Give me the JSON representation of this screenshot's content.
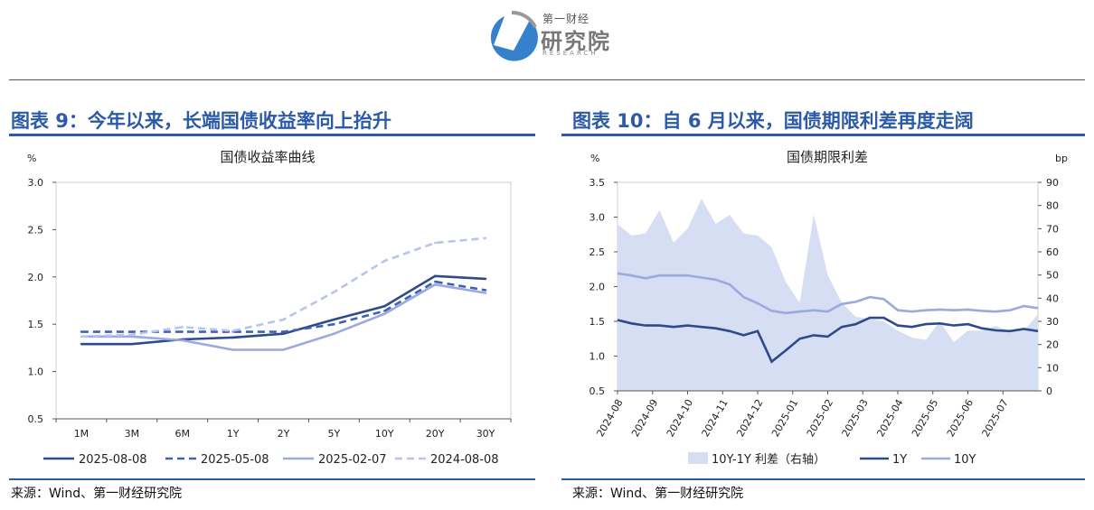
{
  "logo": {
    "name_small": "第一财经",
    "name_main": "研究院",
    "name_sub": "RESEARCH"
  },
  "figure_left": {
    "title": "图表 9：今年以来，长端国债收益率向上抬升",
    "source": "来源：Wind、第一财经研究院"
  },
  "figure_right": {
    "title": "图表 10：自 6 月以来，国债期限利差再度走阔",
    "source": "来源：Wind、第一财经研究院"
  },
  "colors": {
    "accent": "#2b5aa8",
    "dark_blue": "#2e4a8c",
    "mid_blue": "#3f62b0",
    "light_blue": "#9aaadd",
    "pale_blue": "#b8c4ec",
    "area_fill": "#d5def3"
  },
  "chart_data": [
    {
      "type": "line",
      "title": "国债收益率曲线",
      "ylabel": "%",
      "categories": [
        "1M",
        "3M",
        "6M",
        "1Y",
        "2Y",
        "5Y",
        "10Y",
        "20Y",
        "30Y"
      ],
      "ylim": [
        0.5,
        3.0
      ],
      "yticks": [
        "0.5",
        "1.0",
        "1.5",
        "2.0",
        "2.5",
        "3.0"
      ],
      "legend_position": "bottom",
      "series": [
        {
          "name": "2025-08-08",
          "style": "solid",
          "color": "#2e4a8c",
          "values": [
            1.29,
            1.29,
            1.34,
            1.36,
            1.4,
            1.55,
            1.69,
            2.01,
            1.98
          ]
        },
        {
          "name": "2025-05-08",
          "style": "dashed",
          "color": "#3f62b0",
          "values": [
            1.42,
            1.42,
            1.42,
            1.42,
            1.42,
            1.5,
            1.64,
            1.95,
            1.86
          ]
        },
        {
          "name": "2025-02-07",
          "style": "solid",
          "color": "#9aaadd",
          "values": [
            1.37,
            1.37,
            1.33,
            1.23,
            1.23,
            1.4,
            1.61,
            1.92,
            1.83
          ]
        },
        {
          "name": "2024-08-08",
          "style": "dashed",
          "color": "#b8c4ec",
          "values": [
            1.37,
            1.39,
            1.47,
            1.43,
            1.55,
            1.84,
            2.17,
            2.36,
            2.41
          ]
        }
      ]
    },
    {
      "type": "line",
      "title": "国债期限利差",
      "ylabel": "%",
      "ylabel_right": "bp",
      "ylim": [
        0.5,
        3.5
      ],
      "ylim_right": [
        0,
        90
      ],
      "yticks": [
        "0.5",
        "1.0",
        "1.5",
        "2.0",
        "2.5",
        "3.0",
        "3.5"
      ],
      "yticks_right": [
        "0",
        "10",
        "20",
        "30",
        "40",
        "50",
        "60",
        "70",
        "80",
        "90"
      ],
      "x_ticks": [
        "2024-08",
        "2024-09",
        "2024-10",
        "2024-11",
        "2024-12",
        "2025-01",
        "2025-02",
        "2025-03",
        "2025-04",
        "2025-05",
        "2025-06",
        "2025-07"
      ],
      "legend_position": "bottom",
      "series": [
        {
          "name": "10Y-1Y 利差（右轴）",
          "type": "area",
          "axis": "right",
          "color": "#d5def3",
          "values": [
            72,
            67,
            68,
            78,
            64,
            70,
            83,
            72,
            76,
            68,
            67,
            62,
            47,
            38,
            76,
            50,
            38,
            32,
            31,
            30,
            26,
            23,
            22,
            30,
            21,
            26,
            26,
            28,
            26,
            26,
            33
          ]
        },
        {
          "name": "1Y",
          "type": "line",
          "axis": "left",
          "color": "#2e4a8c",
          "values": [
            1.52,
            1.47,
            1.44,
            1.44,
            1.42,
            1.44,
            1.42,
            1.4,
            1.36,
            1.3,
            1.36,
            0.92,
            1.08,
            1.25,
            1.3,
            1.28,
            1.42,
            1.46,
            1.55,
            1.55,
            1.44,
            1.42,
            1.46,
            1.47,
            1.44,
            1.46,
            1.4,
            1.37,
            1.36,
            1.39,
            1.36
          ]
        },
        {
          "name": "10Y",
          "type": "line",
          "axis": "left",
          "color": "#9aaadd",
          "values": [
            2.19,
            2.16,
            2.12,
            2.16,
            2.16,
            2.16,
            2.13,
            2.1,
            2.03,
            1.85,
            1.76,
            1.65,
            1.62,
            1.64,
            1.66,
            1.64,
            1.75,
            1.78,
            1.85,
            1.82,
            1.66,
            1.64,
            1.66,
            1.67,
            1.66,
            1.67,
            1.65,
            1.64,
            1.66,
            1.72,
            1.69
          ]
        }
      ]
    }
  ]
}
